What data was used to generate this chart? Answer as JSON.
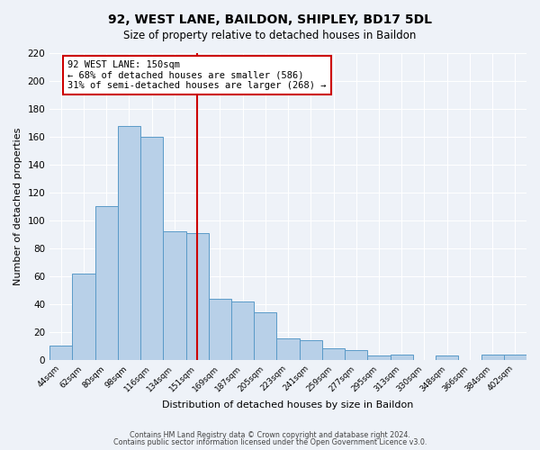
{
  "title": "92, WEST LANE, BAILDON, SHIPLEY, BD17 5DL",
  "subtitle": "Size of property relative to detached houses in Baildon",
  "xlabel": "Distribution of detached houses by size in Baildon",
  "ylabel": "Number of detached properties",
  "bar_labels": [
    "44sqm",
    "62sqm",
    "80sqm",
    "98sqm",
    "116sqm",
    "134sqm",
    "151sqm",
    "169sqm",
    "187sqm",
    "205sqm",
    "223sqm",
    "241sqm",
    "259sqm",
    "277sqm",
    "295sqm",
    "313sqm",
    "330sqm",
    "348sqm",
    "366sqm",
    "384sqm",
    "402sqm"
  ],
  "bar_values": [
    10,
    62,
    110,
    168,
    160,
    92,
    91,
    44,
    42,
    34,
    15,
    14,
    8,
    7,
    3,
    4,
    0,
    3,
    0,
    4,
    4
  ],
  "bar_color": "#b8d0e8",
  "bar_edge_color": "#5a9ac8",
  "vline_x": 6,
  "vline_color": "#cc0000",
  "annotation_text": "92 WEST LANE: 150sqm\n← 68% of detached houses are smaller (586)\n31% of semi-detached houses are larger (268) →",
  "annotation_box_color": "#ffffff",
  "annotation_box_edge_color": "#cc0000",
  "ylim": [
    0,
    220
  ],
  "yticks": [
    0,
    20,
    40,
    60,
    80,
    100,
    120,
    140,
    160,
    180,
    200,
    220
  ],
  "footer1": "Contains HM Land Registry data © Crown copyright and database right 2024.",
  "footer2": "Contains public sector information licensed under the Open Government Licence v3.0.",
  "bg_color": "#eef2f8",
  "grid_color": "#ffffff"
}
